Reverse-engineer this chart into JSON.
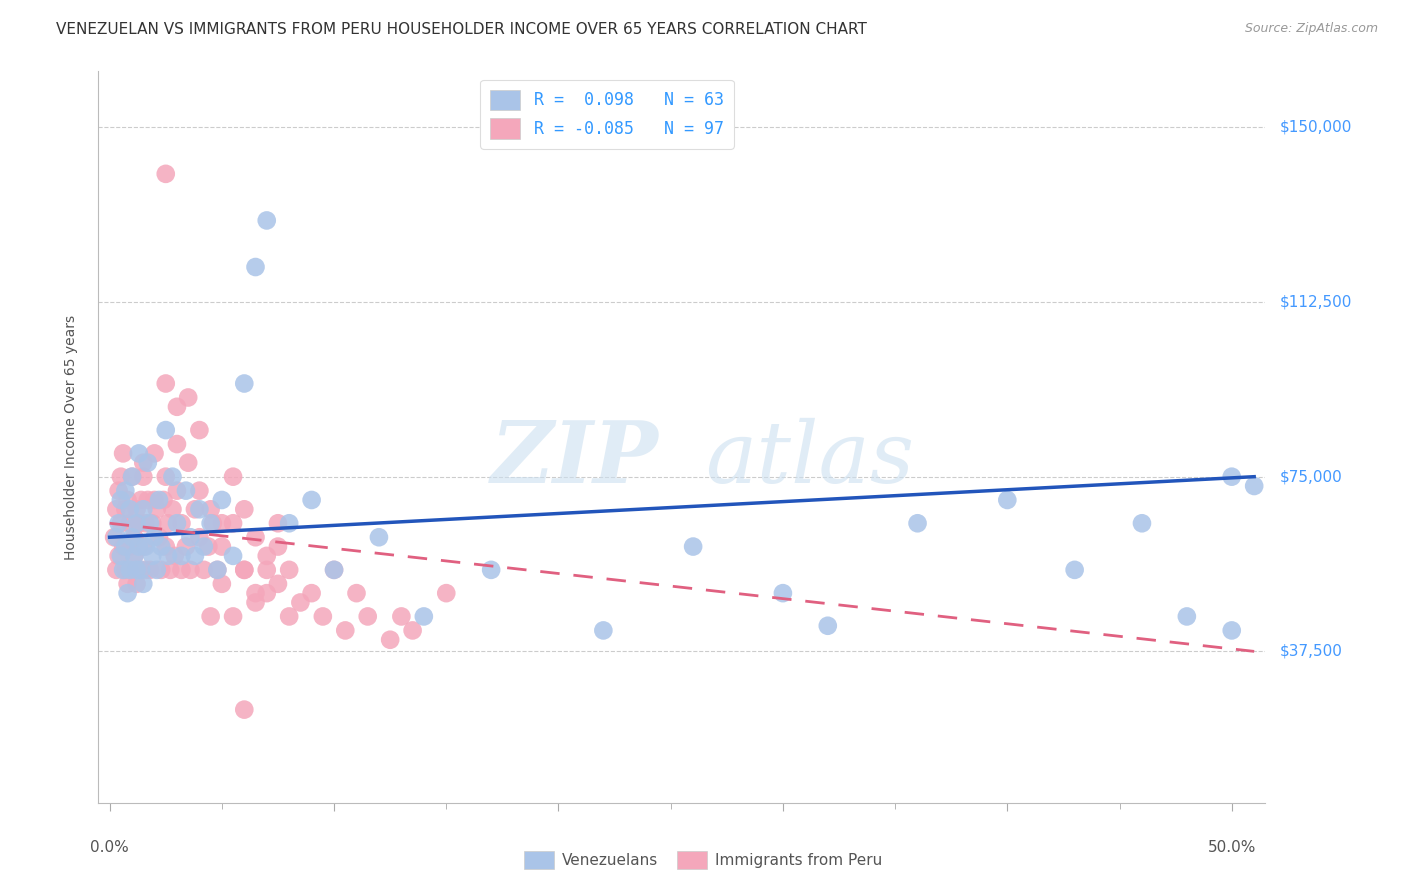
{
  "title": "VENEZUELAN VS IMMIGRANTS FROM PERU HOUSEHOLDER INCOME OVER 65 YEARS CORRELATION CHART",
  "source": "Source: ZipAtlas.com",
  "ylabel_label": "Householder Income Over 65 years",
  "xlim": [
    -0.005,
    0.515
  ],
  "ylim": [
    5000,
    162000
  ],
  "venezuelan_color": "#aac4e8",
  "peru_color": "#f4a7bb",
  "trend_blue_color": "#2255bb",
  "trend_pink_color": "#e06080",
  "background_color": "#ffffff",
  "grid_color": "#cccccc",
  "ytick_vals": [
    37500,
    75000,
    112500,
    150000
  ],
  "ytick_labels": [
    "$37,500",
    "$75,000",
    "$112,500",
    "$150,000"
  ],
  "watermark_zip_color": "#d0e4f4",
  "watermark_atlas_color": "#c8dff0",
  "legend_r_blue": "R =  0.098",
  "legend_n_blue": "N = 63",
  "legend_r_pink": "R = -0.085",
  "legend_n_pink": "N = 97",
  "trend_blue_x0": 0.0,
  "trend_blue_y0": 62000,
  "trend_blue_x1": 0.51,
  "trend_blue_y1": 75000,
  "trend_pink_x0": 0.0,
  "trend_pink_y0": 65000,
  "trend_pink_x1": 0.51,
  "trend_pink_y1": 37500,
  "ven_x": [
    0.003,
    0.004,
    0.005,
    0.005,
    0.006,
    0.007,
    0.007,
    0.008,
    0.009,
    0.009,
    0.01,
    0.01,
    0.011,
    0.012,
    0.012,
    0.013,
    0.013,
    0.014,
    0.015,
    0.015,
    0.016,
    0.017,
    0.018,
    0.019,
    0.02,
    0.021,
    0.022,
    0.023,
    0.025,
    0.026,
    0.028,
    0.03,
    0.032,
    0.034,
    0.036,
    0.038,
    0.04,
    0.042,
    0.045,
    0.048,
    0.05,
    0.055,
    0.06,
    0.065,
    0.07,
    0.08,
    0.09,
    0.1,
    0.12,
    0.14,
    0.17,
    0.22,
    0.26,
    0.3,
    0.32,
    0.36,
    0.4,
    0.43,
    0.46,
    0.48,
    0.5,
    0.5,
    0.51
  ],
  "ven_y": [
    62000,
    65000,
    58000,
    70000,
    55000,
    60000,
    72000,
    50000,
    68000,
    55000,
    62000,
    75000,
    58000,
    65000,
    55000,
    80000,
    60000,
    55000,
    68000,
    52000,
    60000,
    78000,
    65000,
    58000,
    62000,
    55000,
    70000,
    60000,
    85000,
    58000,
    75000,
    65000,
    58000,
    72000,
    62000,
    58000,
    68000,
    60000,
    65000,
    55000,
    70000,
    58000,
    95000,
    120000,
    130000,
    65000,
    70000,
    55000,
    62000,
    45000,
    55000,
    42000,
    60000,
    50000,
    43000,
    65000,
    70000,
    55000,
    65000,
    45000,
    75000,
    42000,
    73000
  ],
  "peru_x": [
    0.002,
    0.003,
    0.003,
    0.004,
    0.004,
    0.005,
    0.005,
    0.006,
    0.006,
    0.007,
    0.007,
    0.008,
    0.008,
    0.009,
    0.009,
    0.01,
    0.01,
    0.011,
    0.011,
    0.012,
    0.012,
    0.013,
    0.013,
    0.014,
    0.015,
    0.015,
    0.016,
    0.016,
    0.017,
    0.018,
    0.019,
    0.02,
    0.021,
    0.022,
    0.023,
    0.024,
    0.025,
    0.026,
    0.027,
    0.028,
    0.029,
    0.03,
    0.032,
    0.034,
    0.036,
    0.038,
    0.04,
    0.042,
    0.044,
    0.046,
    0.048,
    0.05,
    0.055,
    0.06,
    0.065,
    0.07,
    0.075,
    0.08,
    0.09,
    0.1,
    0.11,
    0.13,
    0.15,
    0.08,
    0.05,
    0.06,
    0.07,
    0.03,
    0.04,
    0.025,
    0.035,
    0.015,
    0.02,
    0.025,
    0.03,
    0.035,
    0.04,
    0.045,
    0.05,
    0.055,
    0.06,
    0.065,
    0.07,
    0.075,
    0.055,
    0.065,
    0.075,
    0.085,
    0.095,
    0.105,
    0.115,
    0.125,
    0.135,
    0.025,
    0.032,
    0.045,
    0.06
  ],
  "peru_y": [
    62000,
    68000,
    55000,
    72000,
    58000,
    65000,
    75000,
    60000,
    80000,
    55000,
    68000,
    52000,
    70000,
    60000,
    65000,
    55000,
    75000,
    62000,
    58000,
    68000,
    52000,
    65000,
    55000,
    70000,
    60000,
    75000,
    55000,
    65000,
    70000,
    55000,
    65000,
    80000,
    68000,
    62000,
    55000,
    70000,
    60000,
    65000,
    55000,
    68000,
    58000,
    72000,
    65000,
    60000,
    55000,
    68000,
    62000,
    55000,
    60000,
    65000,
    55000,
    60000,
    65000,
    55000,
    50000,
    55000,
    60000,
    55000,
    50000,
    55000,
    50000,
    45000,
    50000,
    45000,
    52000,
    55000,
    50000,
    90000,
    85000,
    95000,
    92000,
    78000,
    70000,
    75000,
    82000,
    78000,
    72000,
    68000,
    65000,
    75000,
    68000,
    62000,
    58000,
    65000,
    45000,
    48000,
    52000,
    48000,
    45000,
    42000,
    45000,
    40000,
    42000,
    140000,
    55000,
    45000,
    25000
  ]
}
